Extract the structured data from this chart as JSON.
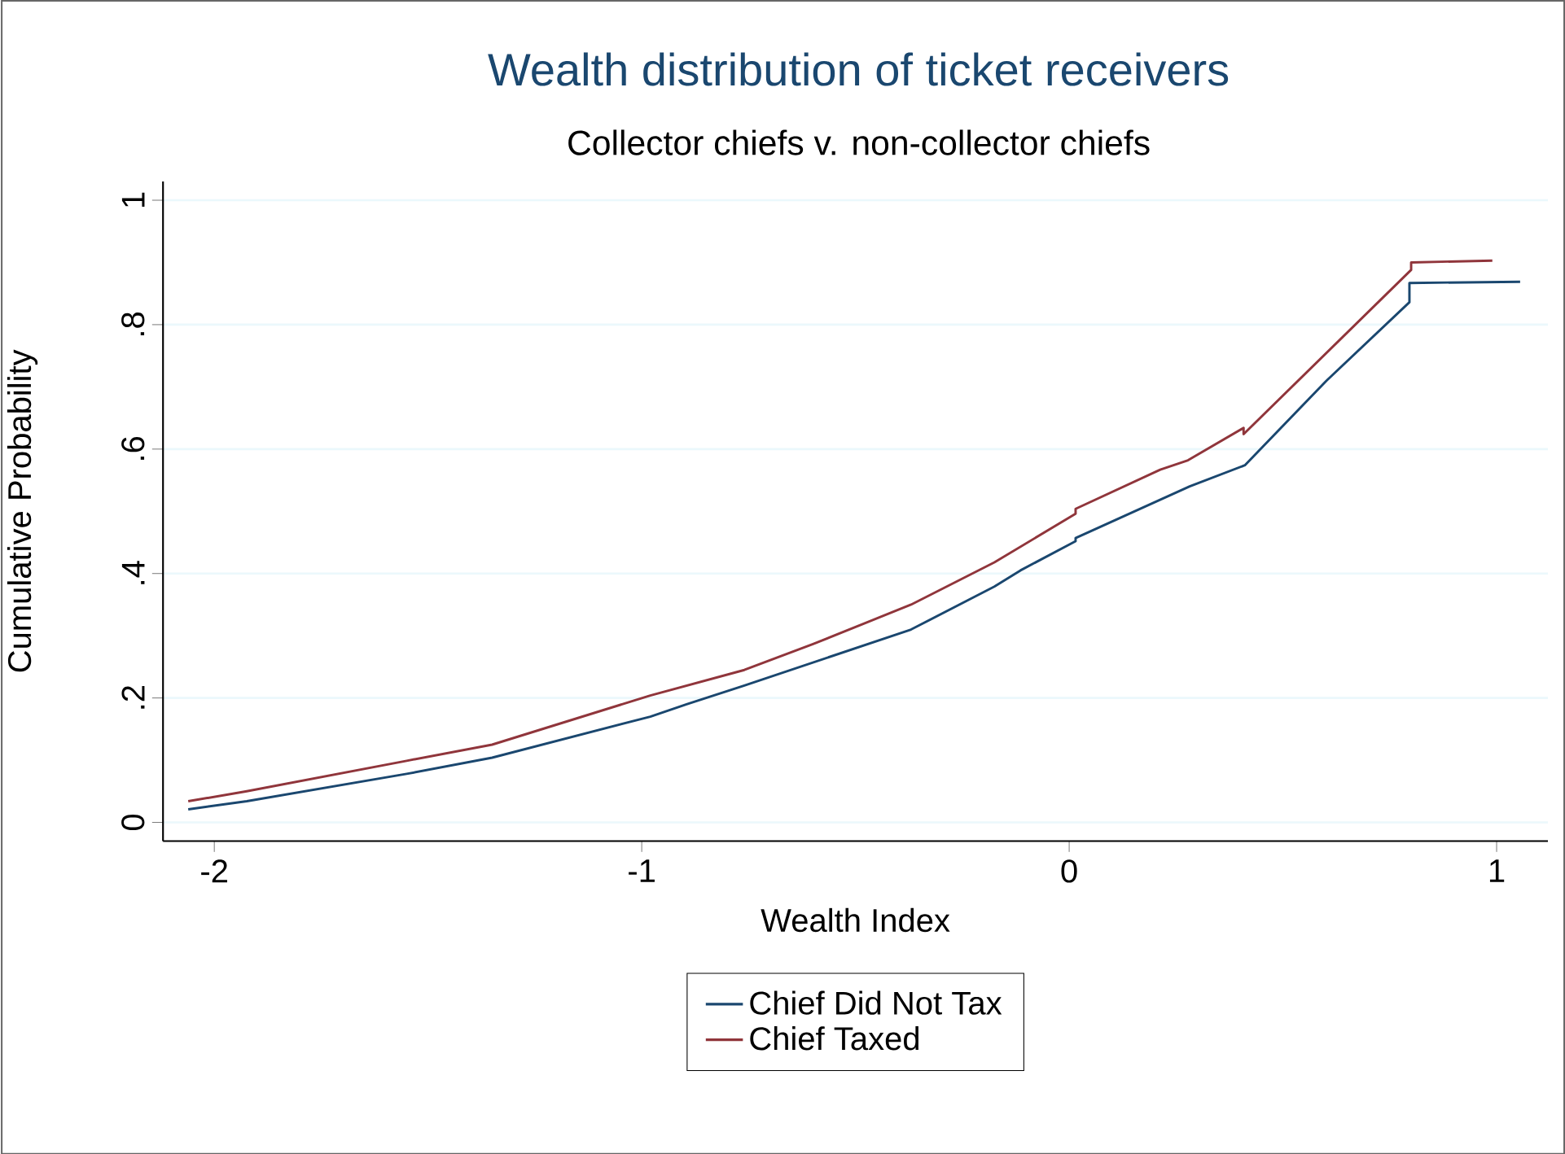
{
  "chart_data": {
    "type": "line",
    "title": "Wealth distribution of ticket receivers",
    "subtitle": "Collector chiefs v. non-collector chiefs",
    "xlabel": "Wealth Index",
    "ylabel": "Cumulative Probability",
    "xlim": [
      -2.12,
      1.12
    ],
    "ylim": [
      -0.03,
      1.03
    ],
    "xticks": [
      -2,
      -1,
      0,
      1
    ],
    "yticks": [
      0,
      {
        "value": 0.2,
        "label": ".2"
      },
      {
        "value": 0.4,
        "label": ".4"
      },
      {
        "value": 0.6,
        "label": ".6"
      },
      {
        "value": 0.8,
        "label": ".8"
      },
      1
    ],
    "grid": "y",
    "legend": "bottom",
    "line_style": "solid",
    "series": [
      {
        "name": "Chief Did Not Tax",
        "color": "#1a476f",
        "x": [
          -2.061,
          -1.924,
          -1.55,
          -1.35,
          -0.98,
          -0.895,
          -0.76,
          -0.37,
          -0.175,
          -0.114,
          0.015,
          0.015,
          0.282,
          0.411,
          0.602,
          0.796,
          0.796,
          1.055
        ],
        "values": [
          0.021,
          0.034,
          0.078,
          0.104,
          0.17,
          0.19,
          0.22,
          0.31,
          0.379,
          0.405,
          0.452,
          0.457,
          0.54,
          0.574,
          0.71,
          0.836,
          0.867,
          0.869
        ]
      },
      {
        "name": "Chief Taxed",
        "color": "#90353b",
        "x": [
          -2.061,
          -1.924,
          -1.55,
          -1.35,
          -0.98,
          -0.76,
          -0.598,
          -0.37,
          -0.175,
          0.015,
          0.015,
          0.213,
          0.278,
          0.408,
          0.408,
          0.8,
          0.8,
          0.99
        ],
        "values": [
          0.034,
          0.05,
          0.099,
          0.125,
          0.204,
          0.245,
          0.287,
          0.35,
          0.418,
          0.496,
          0.504,
          0.567,
          0.582,
          0.634,
          0.624,
          0.888,
          0.9,
          0.903
        ]
      }
    ]
  }
}
